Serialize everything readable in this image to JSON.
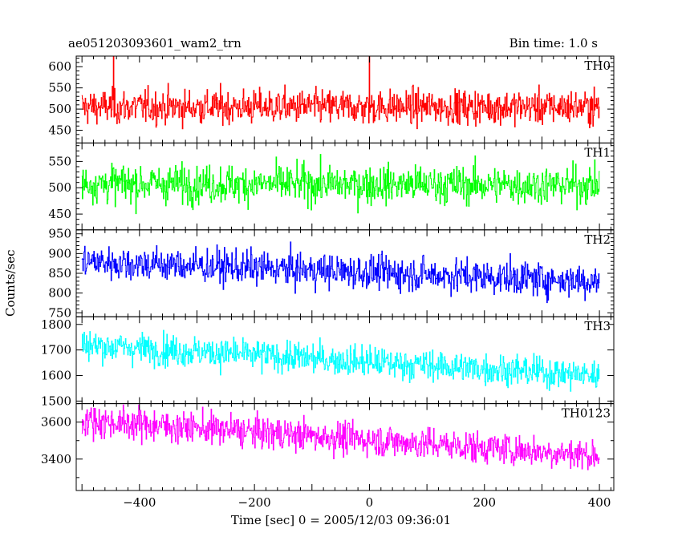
{
  "header": {
    "title_left": "ae051203093601_wam2_trn",
    "title_right": "Bin time: 1.0 s"
  },
  "axes": {
    "xlabel": "Time [sec] 0 = 2005/12/03 09:36:01",
    "ylabel": "Counts/sec",
    "xlim": [
      -510,
      425
    ],
    "xticks_major": [
      -400,
      -200,
      0,
      200,
      400
    ],
    "xtick_labels": [
      "−400",
      "−200",
      "0",
      "200",
      "400"
    ]
  },
  "chart_data": {
    "type": "line",
    "x_range": [
      -500,
      400
    ],
    "bin_time_s": 1.0,
    "panels": [
      {
        "name": "TH0",
        "color": "#ff0000",
        "ylim": [
          420,
          625
        ],
        "yticks": [
          450,
          500,
          550,
          600
        ],
        "ytick_labels": [
          "450",
          "500",
          "550",
          "600"
        ],
        "mean_start": 505,
        "mean_end": 505,
        "noise_sd": 28,
        "spikes": [
          [
            -445,
            625
          ],
          [
            0,
            625
          ]
        ]
      },
      {
        "name": "TH1",
        "color": "#00ff00",
        "ylim": [
          420,
          585
        ],
        "yticks": [
          450,
          500,
          550
        ],
        "ytick_labels": [
          "450",
          "500",
          "550"
        ],
        "mean_start": 508,
        "mean_end": 505,
        "noise_sd": 25,
        "spikes": []
      },
      {
        "name": "TH2",
        "color": "#0000ff",
        "ylim": [
          740,
          960
        ],
        "yticks": [
          750,
          800,
          850,
          900,
          950
        ],
        "ytick_labels": [
          "750",
          "800",
          "850",
          "900",
          "950"
        ],
        "mean_start": 880,
        "mean_end": 830,
        "noise_sd": 30,
        "spikes": []
      },
      {
        "name": "TH3",
        "color": "#00ffff",
        "ylim": [
          1490,
          1830
        ],
        "yticks": [
          1500,
          1600,
          1700,
          1800
        ],
        "ytick_labels": [
          "1500",
          "1600",
          "1700",
          "1800"
        ],
        "mean_start": 1720,
        "mean_end": 1600,
        "noise_sd": 42,
        "spikes": []
      },
      {
        "name": "TH0123",
        "color": "#ff00ff",
        "ylim": [
          3230,
          3700
        ],
        "yticks": [
          3400,
          3600
        ],
        "ytick_labels": [
          "3400",
          "3600"
        ],
        "mean_start": 3610,
        "mean_end": 3420,
        "noise_sd": 60,
        "spikes": []
      }
    ]
  }
}
